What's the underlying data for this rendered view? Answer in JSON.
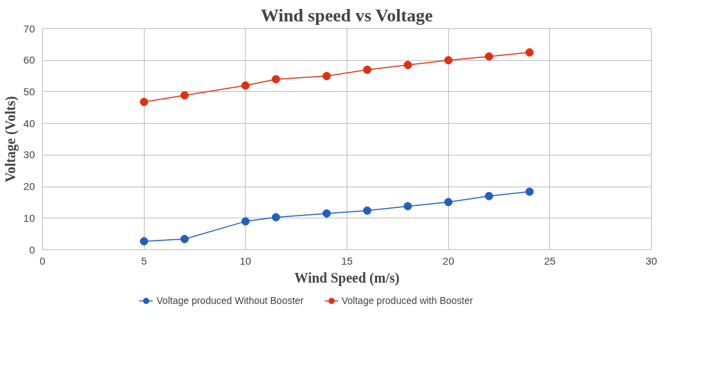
{
  "chart_data": {
    "type": "line",
    "title": "Wind speed vs Voltage",
    "xlabel": "Wind Speed (m/s)",
    "ylabel": "Voltage (Volts)",
    "x": [
      5,
      7,
      10,
      11.5,
      14,
      16,
      18,
      20,
      22,
      24
    ],
    "series": [
      {
        "name": "Voltage produced Without Booster",
        "color": "#1f5fc0",
        "values": [
          2.7,
          3.4,
          9.0,
          10.3,
          11.5,
          12.4,
          13.8,
          15.1,
          17.0,
          18.4
        ]
      },
      {
        "name": "Voltage produced with Booster",
        "color": "#e03010",
        "values": [
          46.8,
          48.9,
          52,
          54,
          55,
          57,
          58.5,
          60,
          61.2,
          62.5
        ]
      }
    ],
    "xlim": [
      0,
      30
    ],
    "xticks": [
      0,
      5,
      10,
      15,
      20,
      25,
      30
    ],
    "ylim": [
      0,
      70
    ],
    "yticks": [
      0,
      10,
      20,
      30,
      40,
      50,
      60,
      70
    ],
    "grid": true,
    "legend": "bottom",
    "marker": "circle",
    "line_style": "solid"
  }
}
